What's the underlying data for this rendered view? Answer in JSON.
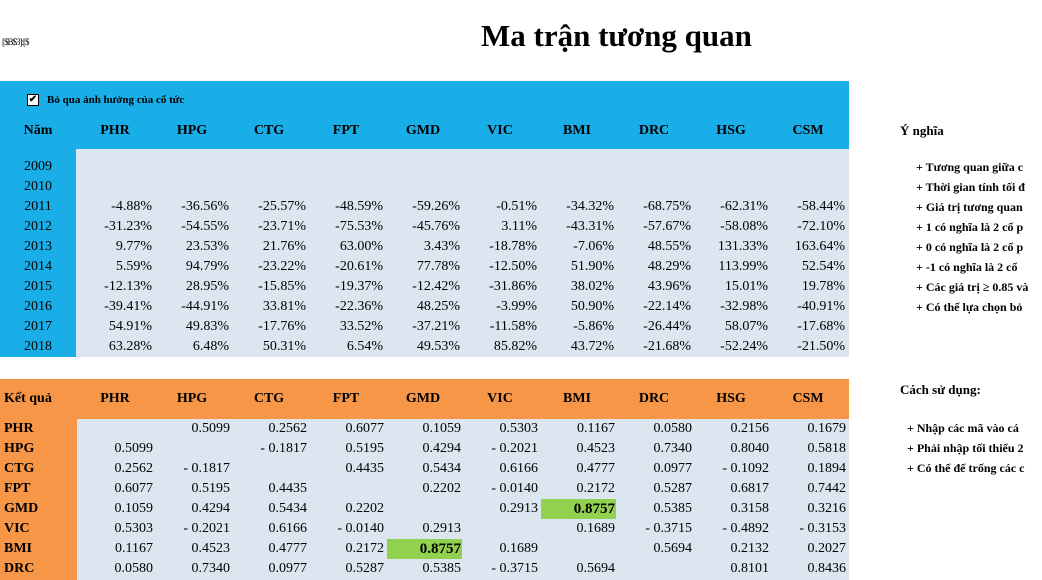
{
  "sheet": {
    "small_label": "[$B$3]:[$",
    "title": "Ma trận tương quan",
    "checkbox": {
      "checked": true,
      "label": "Bỏ qua ảnh hưởng của cổ tức"
    },
    "returns": {
      "year_header": "Năm",
      "tickers": [
        "PHR",
        "HPG",
        "CTG",
        "FPT",
        "GMD",
        "VIC",
        "BMI",
        "DRC",
        "HSG",
        "CSM"
      ],
      "rows": [
        {
          "year": "2009",
          "values": [
            "",
            "",
            "",
            "",
            "",
            "",
            "",
            "",
            "",
            ""
          ]
        },
        {
          "year": "2010",
          "values": [
            "",
            "",
            "",
            "",
            "",
            "",
            "",
            "",
            "",
            ""
          ]
        },
        {
          "year": "2011",
          "values": [
            "-4.88%",
            "-36.56%",
            "-25.57%",
            "-48.59%",
            "-59.26%",
            "-0.51%",
            "-34.32%",
            "-68.75%",
            "-62.31%",
            "-58.44%"
          ]
        },
        {
          "year": "2012",
          "values": [
            "-31.23%",
            "-54.55%",
            "-23.71%",
            "-75.53%",
            "-45.76%",
            "3.11%",
            "-43.31%",
            "-57.67%",
            "-58.08%",
            "-72.10%"
          ]
        },
        {
          "year": "2013",
          "values": [
            "9.77%",
            "23.53%",
            "21.76%",
            "63.00%",
            "3.43%",
            "-18.78%",
            "-7.06%",
            "48.55%",
            "131.33%",
            "163.64%"
          ]
        },
        {
          "year": "2014",
          "values": [
            "5.59%",
            "94.79%",
            "-23.22%",
            "-20.61%",
            "77.78%",
            "-12.50%",
            "51.90%",
            "48.29%",
            "113.99%",
            "52.54%"
          ]
        },
        {
          "year": "2015",
          "values": [
            "-12.13%",
            "28.95%",
            "-15.85%",
            "-19.37%",
            "-12.42%",
            "-31.86%",
            "38.02%",
            "43.96%",
            "15.01%",
            "19.78%"
          ]
        },
        {
          "year": "2016",
          "values": [
            "-39.41%",
            "-44.91%",
            "33.81%",
            "-22.36%",
            "48.25%",
            "-3.99%",
            "50.90%",
            "-22.14%",
            "-32.98%",
            "-40.91%"
          ]
        },
        {
          "year": "2017",
          "values": [
            "54.91%",
            "49.83%",
            "-17.76%",
            "33.52%",
            "-37.21%",
            "-11.58%",
            "-5.86%",
            "-26.44%",
            "58.07%",
            "-17.68%"
          ]
        },
        {
          "year": "2018",
          "values": [
            "63.28%",
            "6.48%",
            "50.31%",
            "6.54%",
            "49.53%",
            "85.82%",
            "43.72%",
            "-21.68%",
            "-52.24%",
            "-21.50%"
          ]
        }
      ]
    },
    "corr": {
      "header": "Kết quả",
      "tickers": [
        "PHR",
        "HPG",
        "CTG",
        "FPT",
        "GMD",
        "VIC",
        "BMI",
        "DRC",
        "HSG",
        "CSM"
      ],
      "rows": [
        {
          "label": "PHR",
          "values": [
            "",
            "0.5099",
            "0.2562",
            "0.6077",
            "0.1059",
            "0.5303",
            "0.1167",
            "0.0580",
            "0.2156",
            "0.1679"
          ]
        },
        {
          "label": "HPG",
          "values": [
            "0.5099",
            "",
            "-  0.1817",
            "0.5195",
            "0.4294",
            "-  0.2021",
            "0.4523",
            "0.7340",
            "0.8040",
            "0.5818"
          ]
        },
        {
          "label": "CTG",
          "values": [
            "0.2562",
            "-  0.1817",
            "",
            "0.4435",
            "0.5434",
            "0.6166",
            "0.4777",
            "0.0977",
            "-  0.1092",
            "0.1894"
          ]
        },
        {
          "label": "FPT",
          "values": [
            "0.6077",
            "0.5195",
            "0.4435",
            "",
            "0.2202",
            "-  0.0140",
            "0.2172",
            "0.5287",
            "0.6817",
            "0.7442"
          ]
        },
        {
          "label": "GMD",
          "values": [
            "0.1059",
            "0.4294",
            "0.5434",
            "0.2202",
            "",
            "0.2913",
            "0.8757",
            "0.5385",
            "0.3158",
            "0.3216"
          ]
        },
        {
          "label": "VIC",
          "values": [
            "0.5303",
            "-  0.2021",
            "0.6166",
            "-  0.0140",
            "0.2913",
            "",
            "0.1689",
            "-  0.3715",
            "-  0.4892",
            "-  0.3153"
          ]
        },
        {
          "label": "BMI",
          "values": [
            "0.1167",
            "0.4523",
            "0.4777",
            "0.2172",
            "0.8757",
            "0.1689",
            "",
            "0.5694",
            "0.2132",
            "0.2027"
          ]
        },
        {
          "label": "DRC",
          "values": [
            "0.0580",
            "0.7340",
            "0.0977",
            "0.5287",
            "0.5385",
            "-  0.3715",
            "0.5694",
            "",
            "0.8101",
            "0.8436"
          ]
        }
      ],
      "highlight_color": "#92d050"
    },
    "meaning": {
      "heading": "Ý nghĩa",
      "lines": [
        "+ Tương quan giữa c",
        "+ Thời gian tính tối đ",
        "+ Giá trị tương quan",
        "+ 1 có nghĩa là 2 cổ p",
        "+ 0 có nghĩa là 2 cổ p",
        "+ -1 có nghĩa là 2 cổ",
        "+ Các giá trị ≥ 0.85 và",
        "+ Có thể lựa chọn bỏ"
      ]
    },
    "usage": {
      "heading": "Cách sử dụng:",
      "lines": [
        "+ Nhập các mã vào cá",
        "+ Phải nhập tối thiểu 2",
        "+ Có thể để trống các c"
      ]
    },
    "colors": {
      "returns_header": "#1aaee8",
      "corr_header": "#f79646",
      "table_body": "#dbe6f1"
    }
  }
}
